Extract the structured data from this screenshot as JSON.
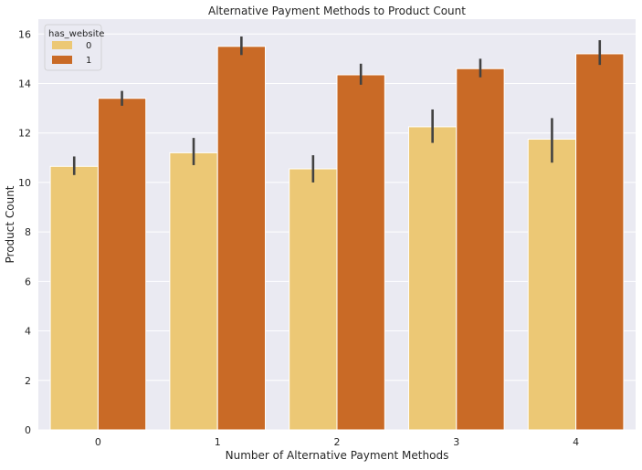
{
  "chart_data": {
    "type": "bar",
    "title": "Alternative Payment Methods to Product Count",
    "xlabel": "Number of Alternative Payment Methods",
    "ylabel": "Product Count",
    "categories": [
      "0",
      "1",
      "2",
      "3",
      "4"
    ],
    "ylim": [
      0,
      16.6
    ],
    "yticks": [
      0,
      2,
      4,
      6,
      8,
      10,
      12,
      14,
      16
    ],
    "ytick_labels": [
      "0",
      "2",
      "4",
      "6",
      "8",
      "10",
      "12",
      "14",
      "16"
    ],
    "grid": true,
    "legend": {
      "title": "has_website",
      "placement": "top-left"
    },
    "series": [
      {
        "name": "0",
        "color": "#ecc875",
        "values": [
          10.65,
          11.2,
          10.55,
          12.25,
          11.75
        ],
        "ci_low": [
          10.3,
          10.7,
          10.0,
          11.6,
          10.8
        ],
        "ci_high": [
          11.05,
          11.8,
          11.1,
          12.95,
          12.6
        ]
      },
      {
        "name": "1",
        "color": "#c96a26",
        "values": [
          13.4,
          15.5,
          14.35,
          14.6,
          15.2
        ],
        "ci_low": [
          13.1,
          15.15,
          13.95,
          14.25,
          14.75
        ],
        "ci_high": [
          13.7,
          15.9,
          14.8,
          15.0,
          15.75
        ]
      }
    ],
    "colors": {
      "plot_background": "#eaeaf2",
      "grid": "#ffffff",
      "errorbar": "#424242"
    }
  }
}
